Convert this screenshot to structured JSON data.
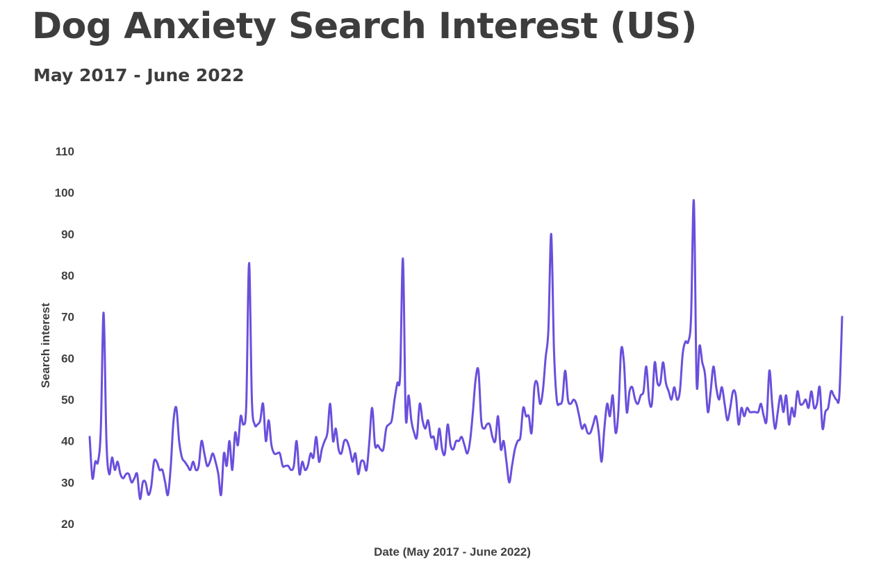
{
  "header": {
    "title": "Dog Anxiety Search Interest (US)",
    "subtitle": "May 2017 - June 2022"
  },
  "chart_data": {
    "type": "line",
    "title": "Dog Anxiety Search Interest (US)",
    "subtitle": "May 2017 - June 2022",
    "xlabel": "Date (May 2017 - June 2022)",
    "ylabel": "Search interest",
    "ylim": [
      20,
      110
    ],
    "yticks": [
      20,
      30,
      40,
      50,
      60,
      70,
      80,
      90,
      100,
      110
    ],
    "xlim": [
      "2017-05",
      "2022-06"
    ],
    "x_tick_labels_shown": false,
    "grid": false,
    "legend": "none",
    "line_color": "#6a4fdc",
    "series": [
      {
        "values": [
          41,
          31,
          35,
          35,
          43,
          71,
          40,
          32,
          36,
          33,
          35,
          32,
          31,
          32,
          32,
          30,
          31,
          32,
          26,
          30,
          30,
          27,
          29,
          35,
          35,
          33,
          33,
          30,
          27,
          34,
          45,
          48,
          40,
          36,
          35,
          34,
          33,
          35,
          33,
          34,
          40,
          37,
          34,
          35,
          37,
          35,
          32,
          27,
          37,
          34,
          40,
          33,
          42,
          39,
          46,
          44,
          49,
          83,
          50,
          44,
          44,
          45,
          49,
          40,
          45,
          39,
          37,
          37,
          37,
          34,
          34,
          34,
          33,
          34,
          40,
          32,
          35,
          33,
          34,
          37,
          36,
          41,
          35,
          38,
          40,
          42,
          49,
          40,
          43,
          38,
          37,
          40,
          40,
          38,
          35,
          37,
          32,
          35,
          35,
          33,
          40,
          48,
          39,
          39,
          38,
          38,
          43,
          44,
          45,
          50,
          54,
          56,
          84,
          46,
          51,
          45,
          42,
          41,
          49,
          45,
          43,
          45,
          41,
          41,
          38,
          43,
          38,
          37,
          44,
          39,
          38,
          40,
          40,
          41,
          39,
          37,
          40,
          47,
          55,
          57,
          45,
          43,
          44,
          44,
          41,
          40,
          46,
          38,
          40,
          35,
          30,
          34,
          38,
          40,
          41,
          48,
          46,
          46,
          42,
          53,
          54,
          49,
          52,
          60,
          67,
          90,
          62,
          50,
          49,
          50,
          57,
          50,
          49,
          50,
          49,
          46,
          43,
          44,
          42,
          42,
          44,
          46,
          42,
          35,
          43,
          49,
          46,
          51,
          42,
          47,
          62,
          59,
          47,
          52,
          53,
          50,
          49,
          51,
          52,
          58,
          50,
          49,
          59,
          54,
          54,
          59,
          54,
          52,
          50,
          53,
          50,
          52,
          61,
          64,
          64,
          70,
          98,
          54,
          63,
          59,
          56,
          47,
          52,
          58,
          53,
          50,
          53,
          49,
          45,
          48,
          52,
          51,
          44,
          48,
          46,
          48,
          47,
          47,
          47,
          47,
          49,
          46,
          45,
          57,
          49,
          43,
          47,
          51,
          47,
          51,
          44,
          48,
          46,
          52,
          49,
          49,
          50,
          48,
          52,
          48,
          49,
          53,
          43,
          47,
          48,
          52,
          51,
          50,
          51,
          70
        ]
      }
    ]
  }
}
